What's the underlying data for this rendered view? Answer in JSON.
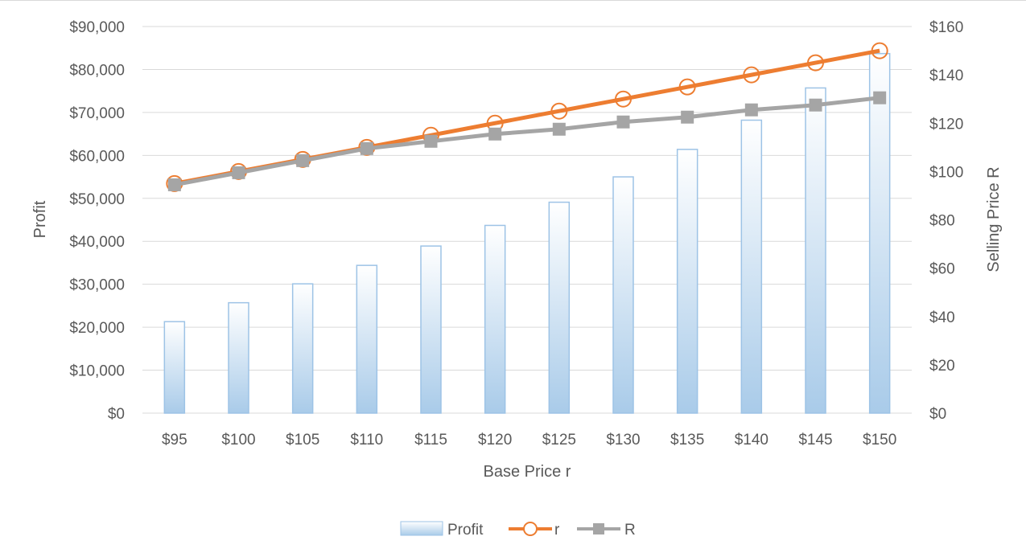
{
  "chart_data": {
    "type": "bar",
    "categories": [
      "$95",
      "$100",
      "$105",
      "$110",
      "$115",
      "$120",
      "$125",
      "$130",
      "$135",
      "$140",
      "$145",
      "$150"
    ],
    "series": [
      {
        "name": "Profit",
        "type": "bar",
        "axis": "left",
        "values": [
          21300,
          25700,
          30100,
          34400,
          38900,
          43700,
          49100,
          55000,
          61400,
          68200,
          75700,
          83700
        ]
      },
      {
        "name": "r",
        "type": "line",
        "axis": "right",
        "marker": "circle",
        "values": [
          95,
          100,
          105,
          110,
          115,
          120,
          125,
          130,
          135,
          140,
          145,
          150
        ]
      },
      {
        "name": "R",
        "type": "line",
        "axis": "right",
        "marker": "square",
        "values": [
          94.5,
          99.5,
          104.5,
          109.5,
          112.5,
          115.5,
          117.5,
          120.5,
          122.5,
          125.5,
          127.5,
          130.5
        ]
      }
    ],
    "xlabel": "Base Price r",
    "ylabel": "Profit",
    "y2label": "Selling Price R",
    "ylim": [
      0,
      90000
    ],
    "y2lim": [
      0,
      160
    ],
    "y_ticks": [
      "$0",
      "$10,000",
      "$20,000",
      "$30,000",
      "$40,000",
      "$50,000",
      "$60,000",
      "$70,000",
      "$80,000",
      "$90,000"
    ],
    "y2_ticks": [
      "$0",
      "$20",
      "$40",
      "$60",
      "$80",
      "$100",
      "$120",
      "$140",
      "$160"
    ],
    "grid": true,
    "legend_position": "bottom",
    "colors": {
      "profit_fill_top": "#ffffff",
      "profit_fill_bottom": "#a9cbe9",
      "profit_border": "#9dc3e6",
      "r": "#ed7d31",
      "R": "#a5a5a5",
      "grid": "#d9d9d9",
      "text": "#595959"
    }
  }
}
